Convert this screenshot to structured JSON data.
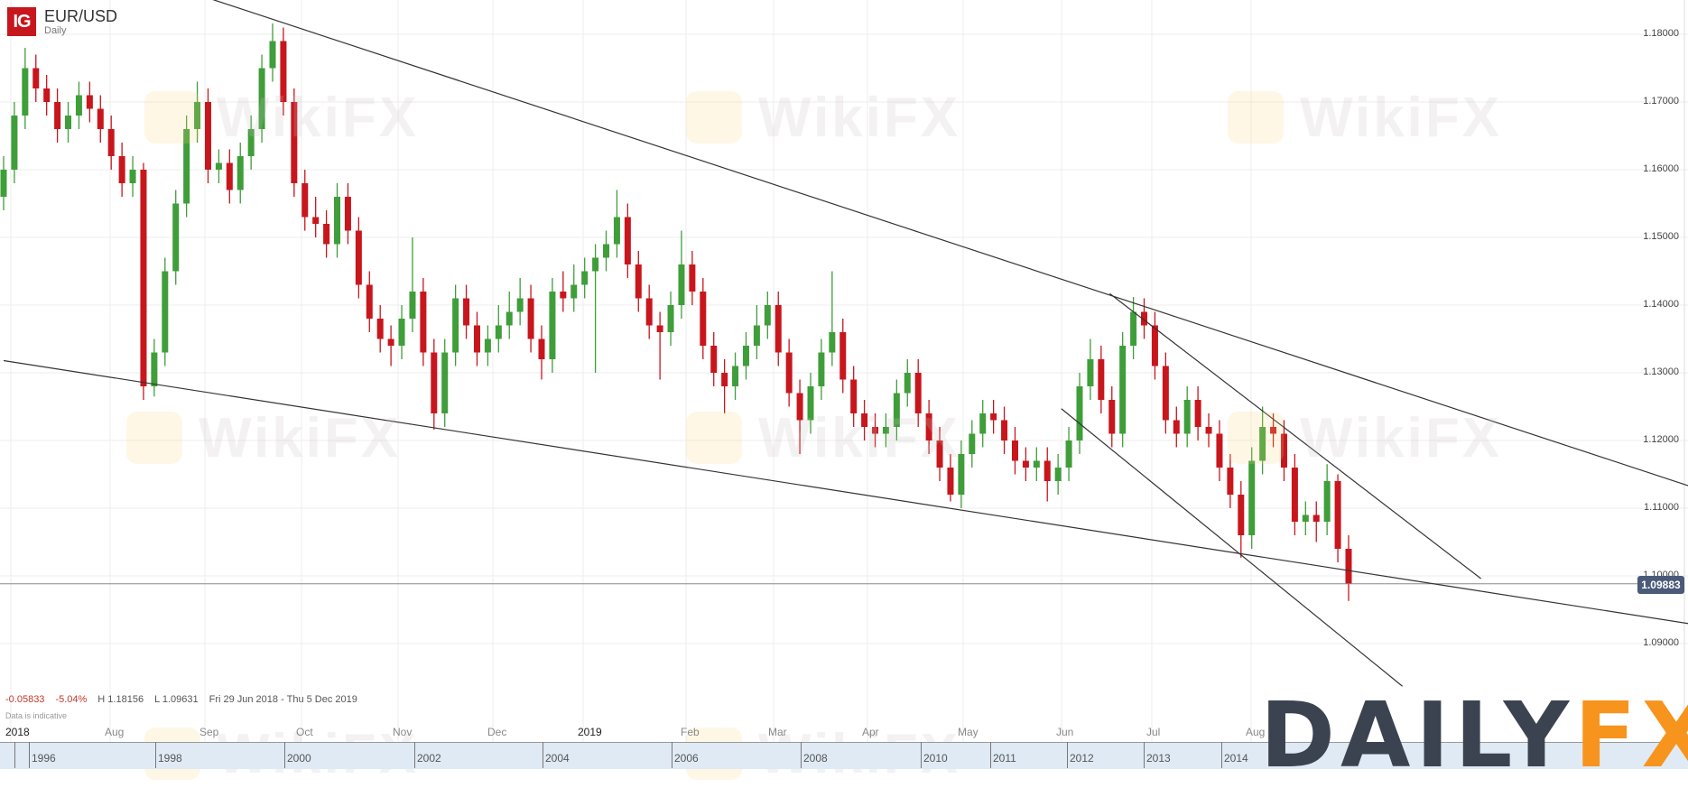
{
  "header": {
    "brand_logo": "IG",
    "symbol": "EUR/USD",
    "timeframe": "Daily"
  },
  "stats": {
    "change": "-0.05833",
    "change_pct": "-5.04%",
    "high": "H 1.18156",
    "low": "L 1.09631",
    "range": "Fri 29 Jun 2018 - Thu 5 Dec 2019",
    "note": "Data is indicative"
  },
  "current_price_label": "1.09883",
  "watermark": "WikiFX",
  "logo": {
    "dark": "DAILY",
    "accent": "FX"
  },
  "colors": {
    "up": "#3f9e3a",
    "down": "#c8161d",
    "current_label_bg": "#4a5a78",
    "logo_dark": "#3c4350",
    "logo_accent": "#f7941d"
  },
  "navigator_labels": [
    "1996",
    "1998",
    "2000",
    "2002",
    "2004",
    "2006",
    "2008",
    "2010",
    "2011",
    "2012",
    "2013",
    "2014"
  ],
  "chart_data": {
    "type": "candlestick",
    "title": "EUR/USD",
    "subtitle": "Daily",
    "ylim": [
      1.085,
      1.186
    ],
    "y_ticks": [
      "1.18000",
      "1.17000",
      "1.16000",
      "1.15000",
      "1.14000",
      "1.13000",
      "1.12000",
      "1.11000",
      "1.10000",
      "1.09000"
    ],
    "x_ticks": [
      "2018",
      "Aug",
      "Sep",
      "Oct",
      "Nov",
      "Dec",
      "2019",
      "Feb",
      "Mar",
      "Apr",
      "May",
      "Jun",
      "Jul",
      "Aug"
    ],
    "grid": true,
    "current_price": 1.09883,
    "ohlc": [
      [
        1.156,
        1.162,
        1.154,
        1.16
      ],
      [
        1.16,
        1.17,
        1.158,
        1.168
      ],
      [
        1.168,
        1.178,
        1.166,
        1.175
      ],
      [
        1.175,
        1.177,
        1.17,
        1.172
      ],
      [
        1.172,
        1.174,
        1.168,
        1.17
      ],
      [
        1.17,
        1.172,
        1.164,
        1.166
      ],
      [
        1.166,
        1.17,
        1.164,
        1.168
      ],
      [
        1.168,
        1.173,
        1.166,
        1.171
      ],
      [
        1.171,
        1.173,
        1.167,
        1.169
      ],
      [
        1.169,
        1.171,
        1.164,
        1.166
      ],
      [
        1.166,
        1.168,
        1.16,
        1.162
      ],
      [
        1.162,
        1.164,
        1.156,
        1.158
      ],
      [
        1.158,
        1.162,
        1.156,
        1.16
      ],
      [
        1.16,
        1.161,
        1.126,
        1.128
      ],
      [
        1.128,
        1.135,
        1.1265,
        1.133
      ],
      [
        1.133,
        1.147,
        1.131,
        1.145
      ],
      [
        1.145,
        1.157,
        1.143,
        1.155
      ],
      [
        1.155,
        1.168,
        1.153,
        1.166
      ],
      [
        1.166,
        1.173,
        1.164,
        1.17
      ],
      [
        1.17,
        1.172,
        1.158,
        1.16
      ],
      [
        1.16,
        1.163,
        1.158,
        1.161
      ],
      [
        1.161,
        1.163,
        1.155,
        1.157
      ],
      [
        1.157,
        1.164,
        1.155,
        1.162
      ],
      [
        1.162,
        1.168,
        1.16,
        1.166
      ],
      [
        1.166,
        1.177,
        1.164,
        1.175
      ],
      [
        1.175,
        1.1816,
        1.173,
        1.179
      ],
      [
        1.179,
        1.181,
        1.168,
        1.17
      ],
      [
        1.17,
        1.172,
        1.156,
        1.158
      ],
      [
        1.158,
        1.16,
        1.151,
        1.153
      ],
      [
        1.153,
        1.156,
        1.15,
        1.152
      ],
      [
        1.152,
        1.154,
        1.147,
        1.149
      ],
      [
        1.149,
        1.158,
        1.147,
        1.156
      ],
      [
        1.156,
        1.158,
        1.149,
        1.151
      ],
      [
        1.151,
        1.153,
        1.141,
        1.143
      ],
      [
        1.143,
        1.145,
        1.136,
        1.138
      ],
      [
        1.138,
        1.14,
        1.133,
        1.135
      ],
      [
        1.135,
        1.137,
        1.131,
        1.134
      ],
      [
        1.134,
        1.14,
        1.132,
        1.138
      ],
      [
        1.138,
        1.15,
        1.136,
        1.142
      ],
      [
        1.142,
        1.144,
        1.131,
        1.133
      ],
      [
        1.133,
        1.135,
        1.1216,
        1.124
      ],
      [
        1.124,
        1.135,
        1.122,
        1.133
      ],
      [
        1.133,
        1.143,
        1.131,
        1.141
      ],
      [
        1.141,
        1.143,
        1.135,
        1.137
      ],
      [
        1.137,
        1.139,
        1.131,
        1.133
      ],
      [
        1.133,
        1.137,
        1.131,
        1.135
      ],
      [
        1.135,
        1.14,
        1.133,
        1.137
      ],
      [
        1.137,
        1.142,
        1.135,
        1.139
      ],
      [
        1.139,
        1.144,
        1.137,
        1.141
      ],
      [
        1.141,
        1.143,
        1.133,
        1.135
      ],
      [
        1.135,
        1.137,
        1.129,
        1.132
      ],
      [
        1.132,
        1.144,
        1.13,
        1.142
      ],
      [
        1.142,
        1.145,
        1.139,
        1.141
      ],
      [
        1.141,
        1.146,
        1.139,
        1.143
      ],
      [
        1.143,
        1.147,
        1.141,
        1.145
      ],
      [
        1.145,
        1.149,
        1.13,
        1.147
      ],
      [
        1.147,
        1.151,
        1.145,
        1.149
      ],
      [
        1.149,
        1.157,
        1.147,
        1.153
      ],
      [
        1.153,
        1.155,
        1.144,
        1.146
      ],
      [
        1.146,
        1.148,
        1.139,
        1.141
      ],
      [
        1.141,
        1.143,
        1.135,
        1.137
      ],
      [
        1.137,
        1.139,
        1.129,
        1.136
      ],
      [
        1.136,
        1.142,
        1.134,
        1.14
      ],
      [
        1.14,
        1.151,
        1.138,
        1.146
      ],
      [
        1.146,
        1.148,
        1.14,
        1.142
      ],
      [
        1.142,
        1.144,
        1.132,
        1.134
      ],
      [
        1.134,
        1.136,
        1.128,
        1.13
      ],
      [
        1.13,
        1.132,
        1.124,
        1.128
      ],
      [
        1.128,
        1.133,
        1.126,
        1.131
      ],
      [
        1.131,
        1.136,
        1.129,
        1.134
      ],
      [
        1.134,
        1.14,
        1.132,
        1.137
      ],
      [
        1.137,
        1.142,
        1.135,
        1.14
      ],
      [
        1.14,
        1.142,
        1.131,
        1.133
      ],
      [
        1.133,
        1.135,
        1.125,
        1.127
      ],
      [
        1.127,
        1.129,
        1.118,
        1.123
      ],
      [
        1.123,
        1.13,
        1.121,
        1.128
      ],
      [
        1.128,
        1.135,
        1.126,
        1.133
      ],
      [
        1.133,
        1.145,
        1.131,
        1.136
      ],
      [
        1.136,
        1.138,
        1.127,
        1.129
      ],
      [
        1.129,
        1.131,
        1.122,
        1.124
      ],
      [
        1.124,
        1.126,
        1.12,
        1.122
      ],
      [
        1.122,
        1.124,
        1.119,
        1.121
      ],
      [
        1.121,
        1.124,
        1.119,
        1.122
      ],
      [
        1.122,
        1.129,
        1.12,
        1.127
      ],
      [
        1.127,
        1.132,
        1.125,
        1.13
      ],
      [
        1.13,
        1.132,
        1.122,
        1.124
      ],
      [
        1.124,
        1.126,
        1.118,
        1.12
      ],
      [
        1.12,
        1.122,
        1.114,
        1.116
      ],
      [
        1.116,
        1.118,
        1.111,
        1.112
      ],
      [
        1.112,
        1.12,
        1.11,
        1.118
      ],
      [
        1.118,
        1.123,
        1.116,
        1.121
      ],
      [
        1.121,
        1.126,
        1.119,
        1.124
      ],
      [
        1.124,
        1.126,
        1.121,
        1.123
      ],
      [
        1.123,
        1.125,
        1.118,
        1.12
      ],
      [
        1.12,
        1.122,
        1.115,
        1.117
      ],
      [
        1.117,
        1.119,
        1.114,
        1.116
      ],
      [
        1.116,
        1.119,
        1.114,
        1.117
      ],
      [
        1.117,
        1.119,
        1.111,
        1.114
      ],
      [
        1.114,
        1.118,
        1.112,
        1.116
      ],
      [
        1.116,
        1.122,
        1.114,
        1.12
      ],
      [
        1.12,
        1.13,
        1.118,
        1.128
      ],
      [
        1.128,
        1.135,
        1.126,
        1.132
      ],
      [
        1.132,
        1.134,
        1.124,
        1.126
      ],
      [
        1.126,
        1.128,
        1.119,
        1.121
      ],
      [
        1.121,
        1.136,
        1.119,
        1.134
      ],
      [
        1.134,
        1.1412,
        1.132,
        1.139
      ],
      [
        1.139,
        1.141,
        1.135,
        1.137
      ],
      [
        1.137,
        1.139,
        1.129,
        1.131
      ],
      [
        1.131,
        1.133,
        1.121,
        1.123
      ],
      [
        1.123,
        1.125,
        1.119,
        1.121
      ],
      [
        1.121,
        1.128,
        1.119,
        1.126
      ],
      [
        1.126,
        1.128,
        1.12,
        1.122
      ],
      [
        1.122,
        1.124,
        1.119,
        1.121
      ],
      [
        1.121,
        1.123,
        1.114,
        1.116
      ],
      [
        1.116,
        1.118,
        1.11,
        1.112
      ],
      [
        1.112,
        1.114,
        1.1027,
        1.106
      ],
      [
        1.106,
        1.119,
        1.104,
        1.117
      ],
      [
        1.117,
        1.125,
        1.115,
        1.122
      ],
      [
        1.122,
        1.124,
        1.119,
        1.121
      ],
      [
        1.121,
        1.123,
        1.114,
        1.116
      ],
      [
        1.116,
        1.118,
        1.106,
        1.108
      ],
      [
        1.108,
        1.111,
        1.106,
        1.109
      ],
      [
        1.109,
        1.111,
        1.105,
        1.108
      ],
      [
        1.108,
        1.1165,
        1.106,
        1.114
      ],
      [
        1.114,
        1.115,
        1.102,
        1.104
      ],
      [
        1.104,
        1.106,
        1.0963,
        1.0988
      ]
    ],
    "trendlines": [
      {
        "from": [
          19.5,
          1.1851
        ],
        "to": [
          156.8,
          1.1132
        ]
      },
      {
        "from": [
          0,
          1.1318
        ],
        "to": [
          156.8,
          1.0929
        ]
      },
      {
        "from": [
          102.8,
          1.1417
        ],
        "to": [
          137.3,
          1.0996
        ]
      },
      {
        "from": [
          98.3,
          1.1247
        ],
        "to": [
          130.0,
          1.0837
        ]
      }
    ]
  }
}
